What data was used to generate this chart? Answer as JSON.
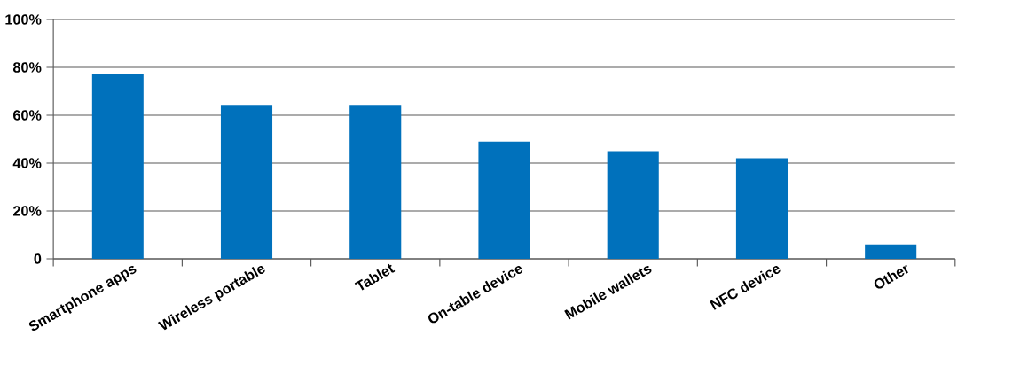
{
  "chart_data": {
    "type": "bar",
    "categories": [
      "Smartphone apps",
      "Wireless portable",
      "Tablet",
      "On-table device",
      "Mobile wallets",
      "NFC device",
      "Other"
    ],
    "values": [
      77,
      64,
      64,
      49,
      45,
      42,
      6
    ],
    "color": "#0071bc",
    "ylim": [
      0,
      100
    ],
    "yticks": [
      0,
      {
        "value": 20,
        "label": "20%"
      },
      {
        "value": 40,
        "label": "40%"
      },
      {
        "value": 60,
        "label": "60%"
      },
      {
        "value": 80,
        "label": "80%"
      },
      {
        "value": 100,
        "label": "100%"
      }
    ],
    "grid": "y"
  }
}
